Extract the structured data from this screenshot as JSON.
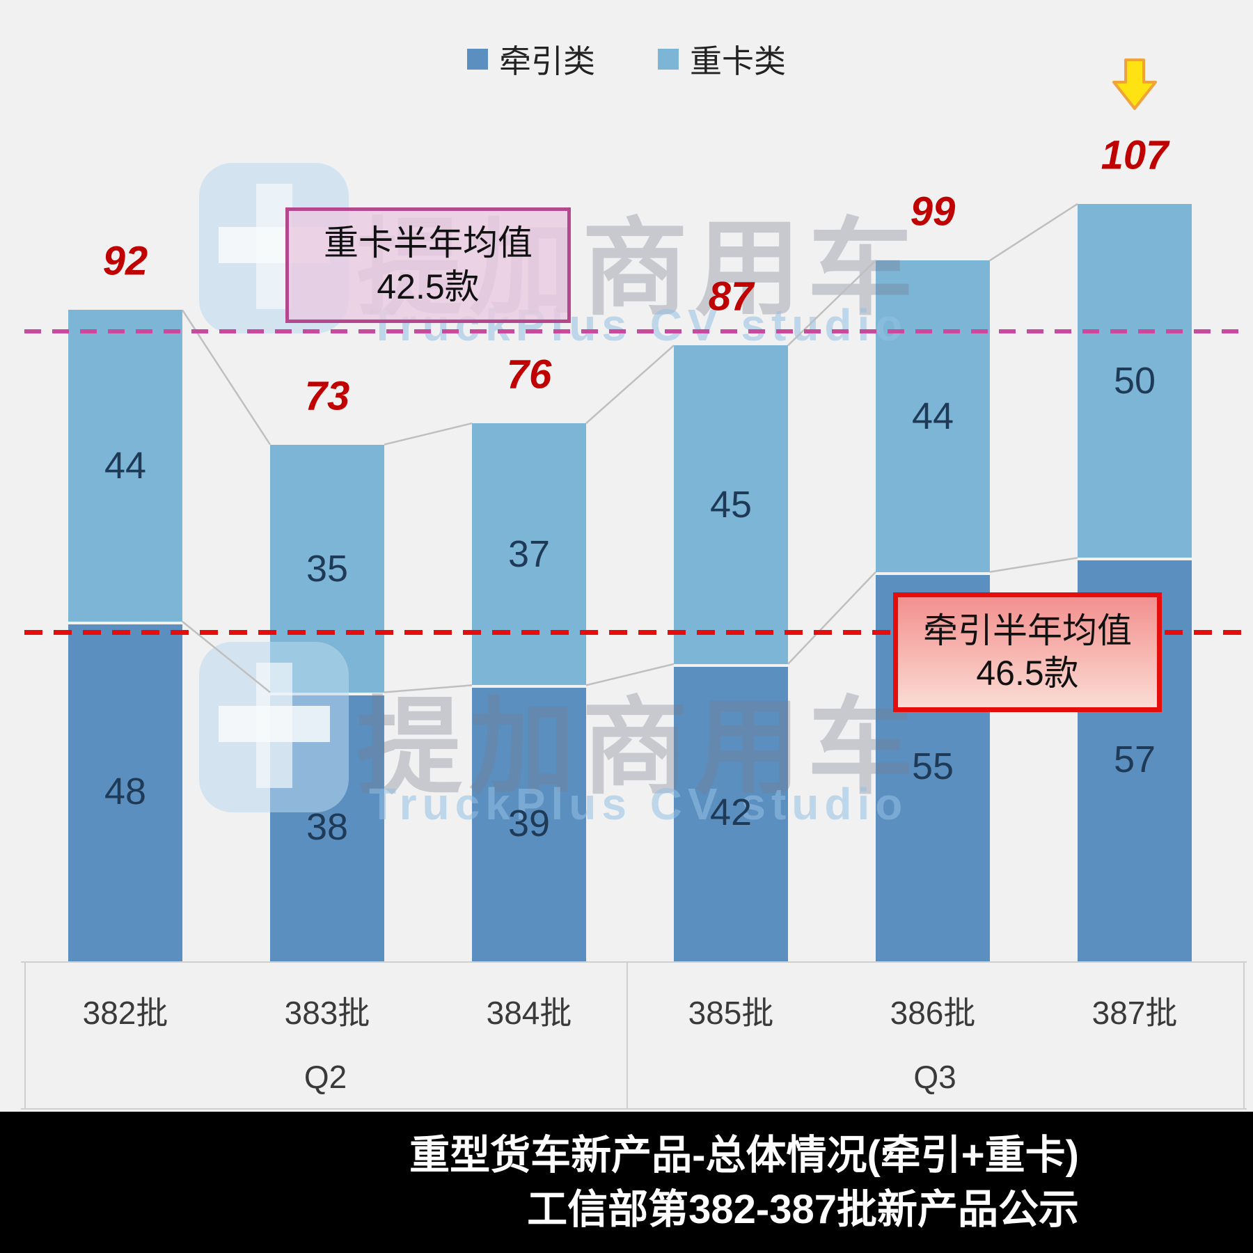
{
  "legend": {
    "items": [
      {
        "label": "牵引类",
        "color": "#5b8fc0"
      },
      {
        "label": "重卡类",
        "color": "#7cb5d6"
      }
    ]
  },
  "annotations": {
    "heavy_avg": {
      "line1": "重卡半年均值",
      "line2": "42.5款"
    },
    "tractor_avg": {
      "line1": "牵引半年均值",
      "line2": "46.5款"
    }
  },
  "watermark": {
    "cn": "提加商用车",
    "en": "TruckPlus CV studio"
  },
  "footer": {
    "line1": "重型货车新产品-总体情况(牵引+重卡)",
    "line2": "工信部第382-387批新产品公示"
  },
  "chart_data": {
    "type": "bar",
    "stacked": true,
    "title": "重型货车新产品-总体情况(牵引+重卡)",
    "subtitle": "工信部第382-387批新产品公示",
    "categories": [
      "382批",
      "383批",
      "384批",
      "385批",
      "386批",
      "387批"
    ],
    "group_labels": [
      {
        "label": "Q2",
        "from": 0,
        "to": 2
      },
      {
        "label": "Q3",
        "from": 3,
        "to": 5
      }
    ],
    "series": [
      {
        "name": "牵引类",
        "color": "#5b8fc0",
        "values": [
          48,
          38,
          39,
          42,
          55,
          57
        ]
      },
      {
        "name": "重卡类",
        "color": "#7cb5d6",
        "values": [
          44,
          35,
          37,
          45,
          44,
          50
        ]
      }
    ],
    "totals": [
      92,
      73,
      76,
      87,
      99,
      107
    ],
    "total_label_color": "#c00000",
    "reference_lines": [
      {
        "name": "tractor-average",
        "label": "牵引半年均值",
        "value": 46.5,
        "unit_text": "46.5款",
        "color": "#e60d0d",
        "stacked_position": 46.5
      },
      {
        "name": "heavy-average",
        "label": "重卡半年均值",
        "value": 42.5,
        "unit_text": "42.5款",
        "color": "#c9499c",
        "stacked_position": 89
      }
    ],
    "highlight": {
      "category": "387批",
      "index": 5,
      "marker": "yellow-down-arrow",
      "total": 107
    },
    "legend_position": "top",
    "grid": false,
    "ylim": [
      0,
      115
    ]
  }
}
